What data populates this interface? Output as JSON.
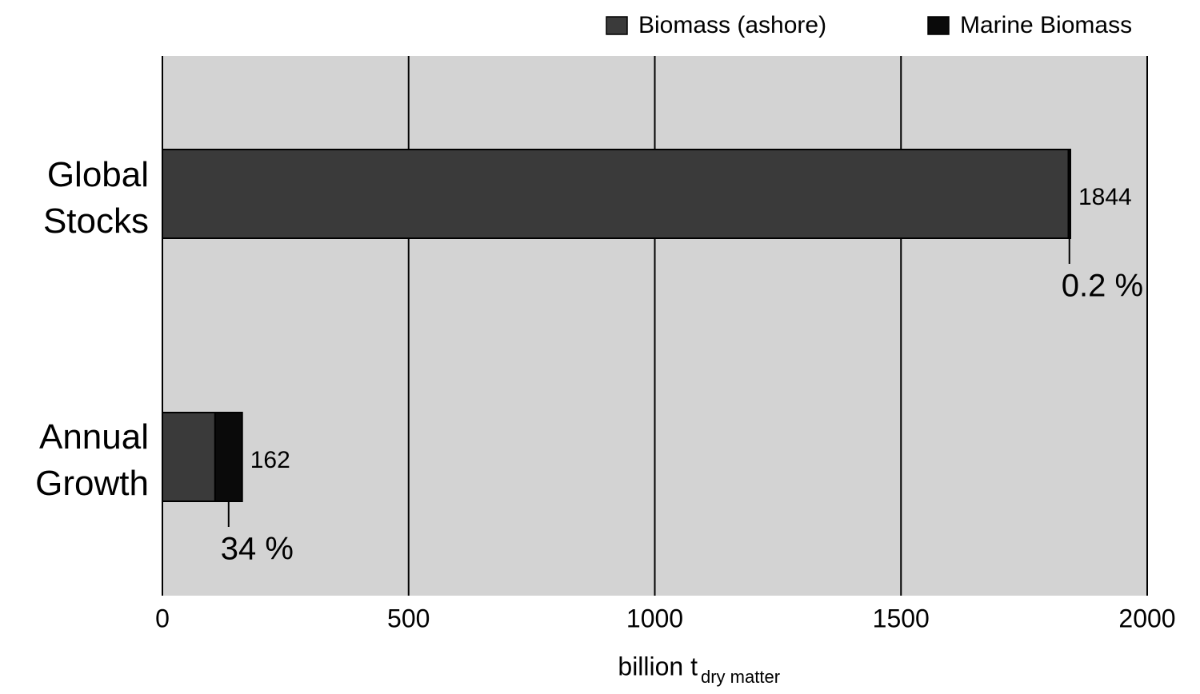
{
  "chart_data": {
    "type": "stacked-bar-horizontal",
    "categories": [
      "Global Stocks",
      "Annual Growth"
    ],
    "series": [
      {
        "name": "Biomass (ashore)",
        "color": "#3a3a3a",
        "values": [
          1840,
          107
        ]
      },
      {
        "name": "Marine Biomass",
        "color": "#0a0a0a",
        "values": [
          4,
          55
        ]
      }
    ],
    "totals": [
      1844,
      162
    ],
    "marine_shares": [
      {
        "value": 0.2,
        "label": "0.2 %"
      },
      {
        "value": 34,
        "label": "34 %"
      }
    ],
    "xlabel": "billion t",
    "xlabel_sub": "dry matter",
    "xlim": [
      0,
      2000
    ],
    "xticks": [
      0,
      500,
      1000,
      1500,
      2000
    ],
    "grid": true,
    "legend": "top-right"
  }
}
